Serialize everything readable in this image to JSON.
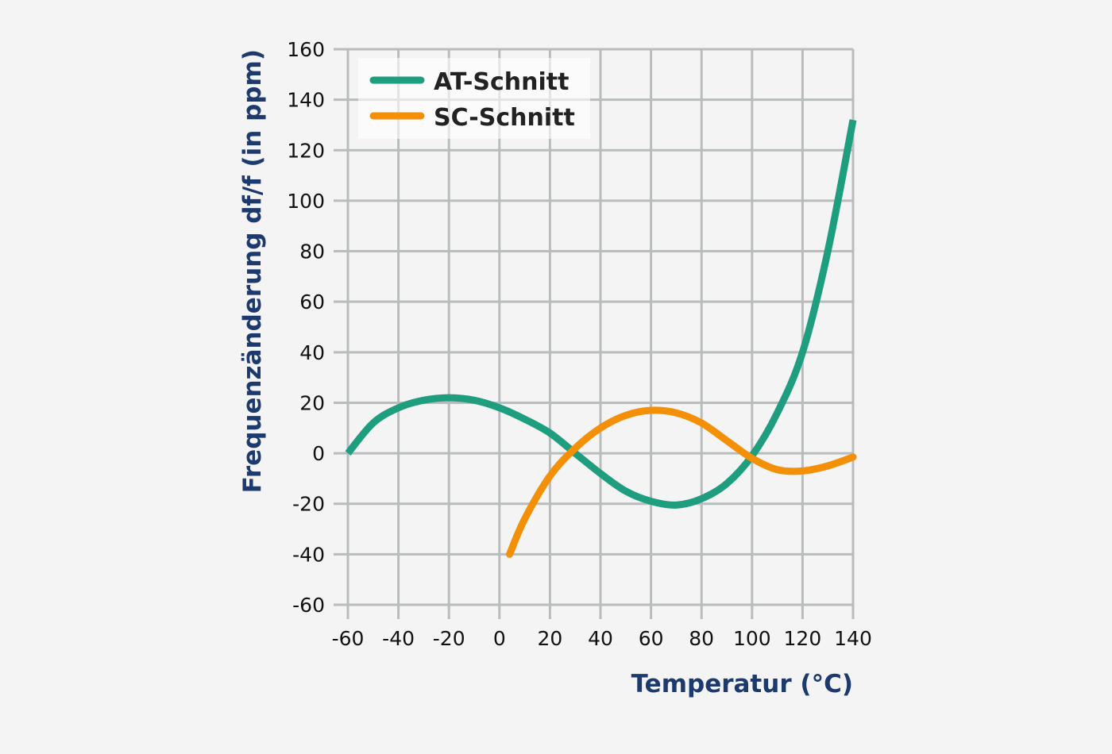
{
  "chart_data": {
    "type": "line",
    "xlabel": "Temperatur (°C)",
    "ylabel": "Frequenzänderung df/f (in ppm)",
    "xlim": [
      -60,
      140
    ],
    "ylim": [
      -60,
      160
    ],
    "xticks": [
      -60,
      -40,
      -20,
      0,
      20,
      40,
      60,
      80,
      100,
      120,
      140
    ],
    "yticks": [
      160,
      140,
      120,
      100,
      80,
      60,
      40,
      20,
      0,
      -20,
      -40,
      -60
    ],
    "grid": true,
    "legend_position": "top-left",
    "series": [
      {
        "name": "AT-Schnitt",
        "color": "#1e9e7e",
        "x": [
          -60,
          -50,
          -40,
          -30,
          -20,
          -10,
          0,
          10,
          20,
          30,
          40,
          50,
          60,
          70,
          80,
          90,
          100,
          110,
          120,
          130,
          140
        ],
        "y": [
          0,
          12,
          18,
          21,
          22,
          21,
          18,
          13.5,
          8,
          0,
          -8,
          -15,
          -19,
          -20.5,
          -18,
          -12,
          -1,
          16,
          40,
          80,
          132
        ]
      },
      {
        "name": "SC-Schnitt",
        "color": "#f39008",
        "x": [
          4,
          10,
          20,
          30,
          40,
          50,
          60,
          70,
          80,
          90,
          100,
          110,
          120,
          130,
          140
        ],
        "y": [
          -40,
          -26,
          -9,
          2,
          10,
          15,
          17,
          16,
          12,
          5,
          -2,
          -6.5,
          -7,
          -5,
          -1.5
        ]
      }
    ]
  }
}
